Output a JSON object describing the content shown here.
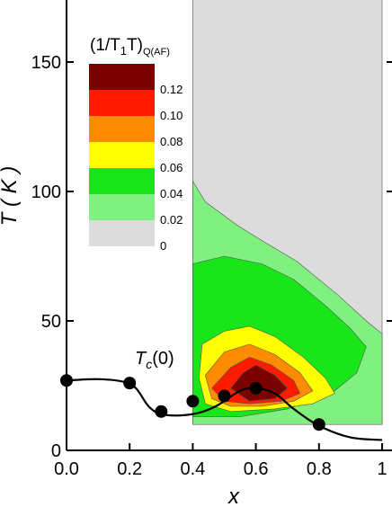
{
  "chart_data": {
    "type": "contour",
    "xlabel": "x",
    "ylabel": "T ( K )",
    "xlim": [
      0,
      1
    ],
    "ylim": [
      0,
      175
    ],
    "x_ticks": [
      "0.0",
      "0.2",
      "0.4",
      "0.6",
      "0.8",
      "1"
    ],
    "y_ticks": [
      "0",
      "50",
      "100",
      "150"
    ],
    "legend": {
      "title": "(1/T1T)Q(AF)",
      "title_main": "(1/T",
      "title_sub1": "1",
      "title_mid": "T)",
      "title_sub2": "Q(AF)",
      "placement": "top-left",
      "levels": [
        {
          "label": "0.12",
          "color": "#7b0000"
        },
        {
          "label": "0.10",
          "color": "#ff1a00"
        },
        {
          "label": "0.08",
          "color": "#ff8c00"
        },
        {
          "label": "0.06",
          "color": "#ffff00"
        },
        {
          "label": "0.04",
          "color": "#19e619"
        },
        {
          "label": "0.02",
          "color": "#80f080"
        },
        {
          "label": "0",
          "color": "#dcdcdc"
        }
      ]
    },
    "annotation": {
      "main": "T",
      "sub": "c",
      "rest": "(0)",
      "x": 0.28,
      "y": 34
    },
    "tc_points": [
      {
        "x": 0.0,
        "y": 27
      },
      {
        "x": 0.2,
        "y": 26
      },
      {
        "x": 0.3,
        "y": 15
      },
      {
        "x": 0.4,
        "y": 19
      },
      {
        "x": 0.5,
        "y": 21
      },
      {
        "x": 0.6,
        "y": 24
      },
      {
        "x": 0.8,
        "y": 10
      }
    ],
    "tc_curve": [
      [
        0.0,
        27
      ],
      [
        0.1,
        27.5
      ],
      [
        0.18,
        26.5
      ],
      [
        0.22,
        24
      ],
      [
        0.26,
        17
      ],
      [
        0.3,
        14
      ],
      [
        0.36,
        13.5
      ],
      [
        0.42,
        14.5
      ],
      [
        0.48,
        17.5
      ],
      [
        0.55,
        23
      ],
      [
        0.6,
        24
      ],
      [
        0.66,
        22
      ],
      [
        0.72,
        16
      ],
      [
        0.8,
        9.5
      ],
      [
        0.9,
        5
      ],
      [
        1.0,
        4
      ]
    ],
    "contours": [
      {
        "level": "0",
        "color": "#dcdcdc",
        "points": [
          [
            0.4,
            175
          ],
          [
            1.0,
            175
          ],
          [
            1.0,
            10
          ],
          [
            0.4,
            10
          ]
        ]
      },
      {
        "level": "0.02",
        "color": "#80f080",
        "points": [
          [
            0.4,
            104
          ],
          [
            0.44,
            96
          ],
          [
            0.54,
            87
          ],
          [
            0.62,
            81
          ],
          [
            0.73,
            73
          ],
          [
            0.86,
            60
          ],
          [
            0.95,
            50
          ],
          [
            1.0,
            45
          ],
          [
            1.0,
            10
          ],
          [
            0.4,
            10
          ]
        ]
      },
      {
        "level": "0.04",
        "color": "#19e619",
        "points": [
          [
            0.4,
            72
          ],
          [
            0.5,
            75
          ],
          [
            0.62,
            72
          ],
          [
            0.72,
            66
          ],
          [
            0.82,
            56
          ],
          [
            0.9,
            47
          ],
          [
            0.95,
            40
          ],
          [
            0.92,
            30
          ],
          [
            0.84,
            22
          ],
          [
            0.7,
            16
          ],
          [
            0.55,
            13
          ],
          [
            0.4,
            13
          ]
        ]
      },
      {
        "level": "0.06",
        "color": "#ffff00",
        "points": [
          [
            0.43,
            41
          ],
          [
            0.5,
            46
          ],
          [
            0.58,
            48
          ],
          [
            0.66,
            44
          ],
          [
            0.75,
            36
          ],
          [
            0.82,
            28
          ],
          [
            0.85,
            22
          ],
          [
            0.78,
            18
          ],
          [
            0.66,
            16
          ],
          [
            0.52,
            15
          ],
          [
            0.44,
            18
          ],
          [
            0.42,
            28
          ]
        ]
      },
      {
        "level": "0.08",
        "color": "#ff8c00",
        "points": [
          [
            0.44,
            29
          ],
          [
            0.5,
            38
          ],
          [
            0.58,
            41
          ],
          [
            0.66,
            37
          ],
          [
            0.74,
            30
          ],
          [
            0.78,
            23
          ],
          [
            0.72,
            19
          ],
          [
            0.62,
            17
          ],
          [
            0.52,
            17
          ],
          [
            0.46,
            20
          ]
        ]
      },
      {
        "level": "0.10",
        "color": "#ff1a00",
        "points": [
          [
            0.46,
            24
          ],
          [
            0.52,
            32
          ],
          [
            0.58,
            36
          ],
          [
            0.65,
            33
          ],
          [
            0.72,
            27
          ],
          [
            0.74,
            22
          ],
          [
            0.68,
            19
          ],
          [
            0.58,
            18
          ],
          [
            0.5,
            19
          ]
        ]
      },
      {
        "level": "0.12",
        "color": "#7b0000",
        "points": [
          [
            0.52,
            24
          ],
          [
            0.56,
            30
          ],
          [
            0.6,
            33
          ],
          [
            0.66,
            29
          ],
          [
            0.7,
            24
          ],
          [
            0.66,
            20
          ],
          [
            0.58,
            19
          ]
        ]
      }
    ]
  }
}
